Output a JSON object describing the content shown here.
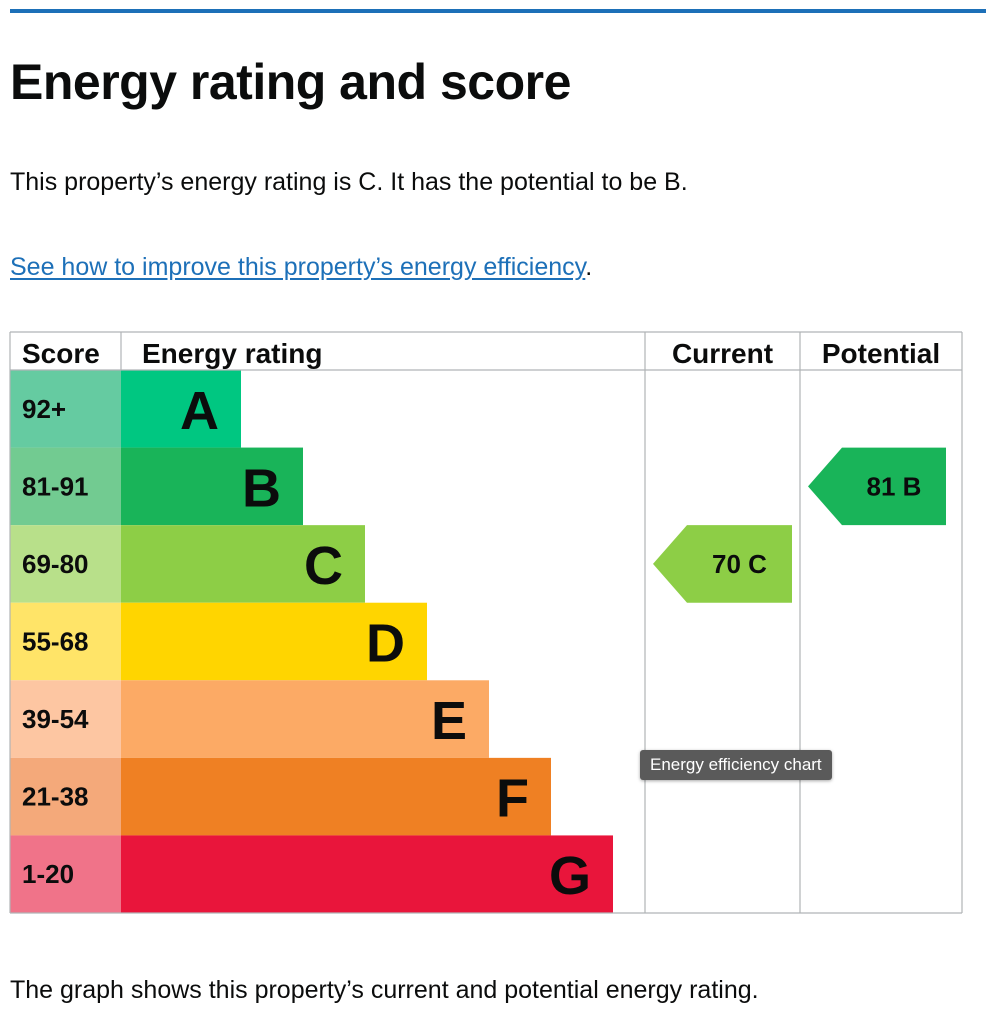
{
  "page": {
    "title": "Energy rating and score",
    "intro": "This property’s energy rating is C. It has the potential to be B.",
    "improve_link": "See how to improve this property’s energy efficiency",
    "improve_suffix": ".",
    "footer": "The graph shows this property’s current and potential energy rating.",
    "tooltip": "Energy efficiency chart"
  },
  "colors": {
    "link": "#1d70b8",
    "top_rule": "#1d70b8"
  },
  "chart_data": {
    "type": "table",
    "headers": {
      "score": "Score",
      "rating": "Energy rating",
      "current": "Current",
      "potential": "Potential"
    },
    "bands": [
      {
        "score": "92+",
        "letter": "A",
        "color": "#00c781",
        "score_bg": "#65cba1"
      },
      {
        "score": "81-91",
        "letter": "B",
        "color": "#19b459",
        "score_bg": "#72cb91"
      },
      {
        "score": "69-80",
        "letter": "C",
        "color": "#8dce46",
        "score_bg": "#b8e08a"
      },
      {
        "score": "55-68",
        "letter": "D",
        "color": "#ffd500",
        "score_bg": "#ffe468"
      },
      {
        "score": "39-54",
        "letter": "E",
        "color": "#fcaa65",
        "score_bg": "#fdc6a2"
      },
      {
        "score": "21-38",
        "letter": "F",
        "color": "#ef8023",
        "score_bg": "#f4a97a"
      },
      {
        "score": "1-20",
        "letter": "G",
        "color": "#e9153b",
        "score_bg": "#f07389"
      }
    ],
    "current": {
      "score": 70,
      "rating": "C",
      "label": "70  C",
      "color": "#8dce46"
    },
    "potential": {
      "score": 81,
      "rating": "B",
      "label": "81  B",
      "color": "#19b459"
    }
  }
}
